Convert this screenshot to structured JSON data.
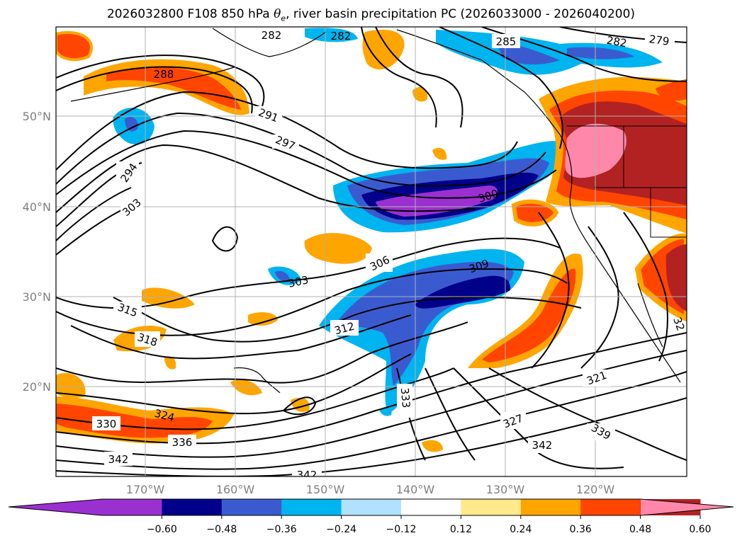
{
  "title": {
    "prefix": "2026032800 F108 850 hPa ",
    "theta": "θ",
    "theta_sub": "e",
    "suffix": ", river basin precipitation PC (2026033000 - 2026040200)"
  },
  "lat_labels": [
    "50°N",
    "40°N",
    "30°N",
    "20°N"
  ],
  "lon_labels": [
    "170°W",
    "160°W",
    "150°W",
    "140°W",
    "130°W",
    "120°W"
  ],
  "contour_labels": [
    "282",
    "282",
    "285",
    "282",
    "279",
    "288",
    "291",
    "297",
    "294",
    "303",
    "300",
    "306",
    "309",
    "303",
    "315",
    "318",
    "312",
    "333",
    "324",
    "330",
    "336",
    "342",
    "342",
    "327",
    "321",
    "339",
    "342",
    "32"
  ],
  "colorbar": {
    "levels": [
      -0.72,
      -0.6,
      -0.48,
      -0.36,
      -0.24,
      -0.12,
      0.12,
      0.24,
      0.36,
      0.48,
      0.6,
      0.72
    ],
    "tick_labels": [
      "−0.60",
      "−0.48",
      "−0.36",
      "−0.24",
      "−0.12",
      "0.12",
      "0.24",
      "0.36",
      "0.48",
      "0.60"
    ],
    "colors": [
      "#9b30d0",
      "#00008b",
      "#3a5bd0",
      "#00b4f0",
      "#b0e2ff",
      "#ffffff",
      "#ffe98a",
      "#ffa500",
      "#ff4500",
      "#b22222",
      "#ff88aa",
      "#ff88aa"
    ],
    "under_color": "#9b30d0",
    "over_color": "#ff88aa"
  },
  "colors": {
    "contour": "#000000",
    "grid": "#b0b0b0",
    "coast": "#000000"
  }
}
